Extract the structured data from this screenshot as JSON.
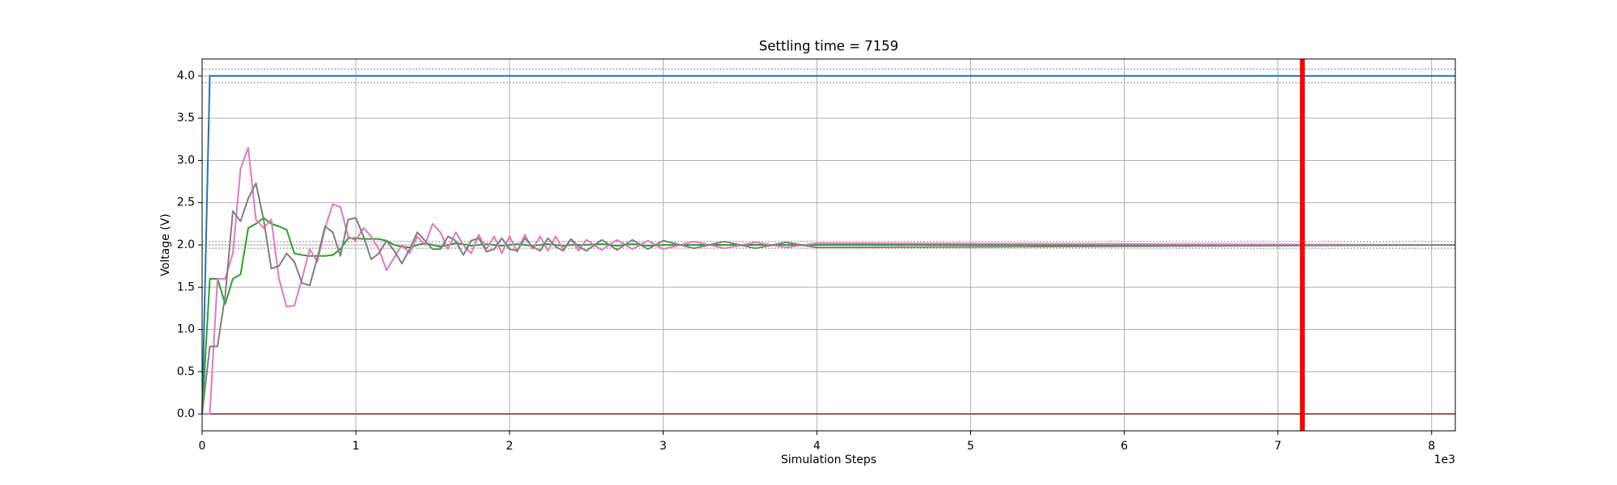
{
  "chart_data": {
    "type": "line",
    "title": "Settling time = 7159",
    "xlabel": "Simulation Steps",
    "ylabel": "Voltage (V)",
    "x_offset_label": "1e3",
    "grid": true,
    "xlim": [
      0,
      8154
    ],
    "ylim": [
      -0.2,
      4.2
    ],
    "xticks": [
      {
        "value": 0,
        "label": "0"
      },
      {
        "value": 1000,
        "label": "1"
      },
      {
        "value": 2000,
        "label": "2"
      },
      {
        "value": 3000,
        "label": "3"
      },
      {
        "value": 4000,
        "label": "4"
      },
      {
        "value": 5000,
        "label": "5"
      },
      {
        "value": 6000,
        "label": "6"
      },
      {
        "value": 7000,
        "label": "7"
      },
      {
        "value": 8000,
        "label": "8"
      }
    ],
    "yticks": [
      {
        "value": 0,
        "label": "0.0"
      },
      {
        "value": 0.5,
        "label": "0.5"
      },
      {
        "value": 1,
        "label": "1.0"
      },
      {
        "value": 1.5,
        "label": "1.5"
      },
      {
        "value": 2,
        "label": "2.0"
      },
      {
        "value": 2.5,
        "label": "2.5"
      },
      {
        "value": 3,
        "label": "3.0"
      },
      {
        "value": 3.5,
        "label": "3.5"
      },
      {
        "value": 4,
        "label": "4.0"
      }
    ],
    "tolerance_lines": [
      4.08,
      3.92,
      2.04,
      1.96
    ],
    "tolerance_color": "#888888",
    "settling_time": 7159,
    "settling_color": "#ff0000",
    "x": [
      0,
      50,
      100,
      150,
      200,
      250,
      300,
      350,
      400,
      450,
      500,
      550,
      600,
      650,
      700,
      750,
      800,
      850,
      900,
      950,
      1000,
      1050,
      1100,
      1150,
      1200,
      1250,
      1300,
      1350,
      1400,
      1450,
      1500,
      1550,
      1600,
      1650,
      1700,
      1750,
      1800,
      1850,
      1900,
      1950,
      2000,
      2050,
      2100,
      2150,
      2200,
      2250,
      2300,
      2350,
      2400,
      2450,
      2500,
      2600,
      2700,
      2800,
      2900,
      3000,
      3200,
      3400,
      3600,
      3800,
      4000,
      8154
    ],
    "series": [
      {
        "color": "#1f77b4",
        "values": [
          0,
          4,
          4,
          4,
          4,
          4,
          4,
          4,
          4,
          4,
          4,
          4,
          4,
          4,
          4,
          4,
          4,
          4,
          4,
          4,
          4,
          4,
          4,
          4,
          4,
          4,
          4,
          4,
          4,
          4,
          4,
          4,
          4,
          4,
          4,
          4,
          4,
          4,
          4,
          4,
          4,
          4,
          4,
          4,
          4,
          4,
          4,
          4,
          4,
          4,
          4,
          4,
          4,
          4,
          4,
          4,
          4,
          4,
          4,
          4,
          4,
          4
        ]
      },
      {
        "color": "#8c564b",
        "values": [
          0,
          0,
          0,
          0,
          0,
          0,
          0,
          0,
          0,
          0,
          0,
          0,
          0,
          0,
          0,
          0,
          0,
          0,
          0,
          0,
          0,
          0,
          0,
          0,
          0,
          0,
          0,
          0,
          0,
          0,
          0,
          0,
          0,
          0,
          0,
          0,
          0,
          0,
          0,
          0,
          0,
          0,
          0,
          0,
          0,
          0,
          0,
          0,
          0,
          0,
          0,
          0,
          0,
          0,
          0,
          0,
          0,
          0,
          0,
          0,
          0,
          0
        ]
      },
      {
        "color": "#2ca02c",
        "values": [
          0,
          1.6,
          1.6,
          1.3,
          1.6,
          1.65,
          2.2,
          2.25,
          2.32,
          2.25,
          2.22,
          2.18,
          1.9,
          1.88,
          1.87,
          1.87,
          1.87,
          1.88,
          1.95,
          2.08,
          2.08,
          2.07,
          2.07,
          2.07,
          2.05,
          2.0,
          1.98,
          1.97,
          2.0,
          2.02,
          2.0,
          1.98,
          2.0,
          2.02,
          2.01,
          1.99,
          2.0,
          2.01,
          2.0,
          1.99,
          2.0,
          2.01,
          2.0,
          1.99,
          2.0,
          2.01,
          2.0,
          1.99,
          2.0,
          2.0,
          2.0,
          2.01,
          1.99,
          2.01,
          1.99,
          2.0,
          2.0,
          2.0,
          2.0,
          2.0,
          2.0,
          2.0
        ]
      },
      {
        "color": "#e377c2",
        "values": [
          0,
          0,
          1.6,
          1.6,
          1.9,
          2.9,
          3.15,
          2.3,
          2.2,
          2.3,
          1.6,
          1.27,
          1.28,
          1.6,
          1.95,
          1.8,
          2.2,
          2.48,
          2.45,
          2.1,
          2.05,
          2.2,
          2.1,
          1.95,
          1.7,
          1.85,
          2.0,
          1.9,
          2.1,
          2.0,
          2.25,
          2.15,
          1.95,
          2.15,
          2.0,
          1.9,
          2.12,
          1.95,
          2.1,
          1.9,
          2.1,
          1.92,
          2.12,
          1.95,
          2.1,
          1.93,
          2.1,
          1.95,
          2.07,
          1.93,
          2.06,
          1.94,
          2.06,
          1.95,
          2.05,
          1.95,
          2.04,
          1.96,
          2.03,
          1.97,
          2.02,
          2.0
        ]
      },
      {
        "color": "#7f7f7f",
        "values": [
          0,
          0.8,
          0.8,
          1.4,
          2.4,
          2.28,
          2.55,
          2.73,
          2.3,
          1.72,
          1.75,
          1.9,
          1.8,
          1.55,
          1.52,
          1.85,
          2.22,
          2.15,
          1.87,
          2.3,
          2.32,
          2.1,
          1.83,
          1.9,
          2.05,
          1.93,
          1.78,
          1.95,
          2.15,
          2.05,
          1.95,
          1.95,
          2.1,
          2.05,
          1.88,
          2.05,
          2.08,
          1.92,
          1.95,
          2.08,
          1.95,
          1.93,
          2.08,
          1.98,
          1.93,
          2.08,
          1.98,
          1.93,
          2.07,
          1.98,
          1.93,
          2.06,
          1.94,
          2.06,
          1.95,
          2.05,
          1.96,
          2.04,
          1.96,
          2.03,
          1.97,
          2.0
        ]
      }
    ]
  }
}
